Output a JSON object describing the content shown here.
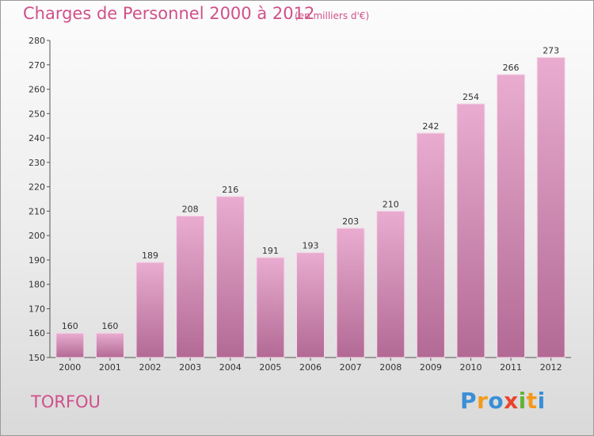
{
  "title": "Charges de Personnel 2000 à 2012",
  "subtitle": "(en milliers d'€)",
  "location": "TORFOU",
  "logo": {
    "letters": [
      "P",
      "r",
      "o",
      "x",
      "i",
      "t",
      "i"
    ],
    "colors": [
      "#3a8fd6",
      "#f29a1a",
      "#3a8fd6",
      "#e8452c",
      "#63b236",
      "#f29a1a",
      "#3a8fd6"
    ]
  },
  "colors": {
    "title": "#d0508a",
    "bar_top": "#e9acd0",
    "bar_bottom": "#b26a94"
  },
  "chart_data": {
    "type": "bar",
    "categories": [
      "2000",
      "2001",
      "2002",
      "2003",
      "2004",
      "2005",
      "2006",
      "2007",
      "2008",
      "2009",
      "2010",
      "2011",
      "2012"
    ],
    "values": [
      160,
      160,
      189,
      208,
      216,
      191,
      193,
      203,
      210,
      242,
      254,
      266,
      273
    ],
    "ylim": [
      150,
      280
    ],
    "yticks": [
      150,
      160,
      170,
      180,
      190,
      200,
      210,
      220,
      230,
      240,
      250,
      260,
      270,
      280
    ],
    "grid": false,
    "xlabel": "",
    "ylabel": ""
  }
}
